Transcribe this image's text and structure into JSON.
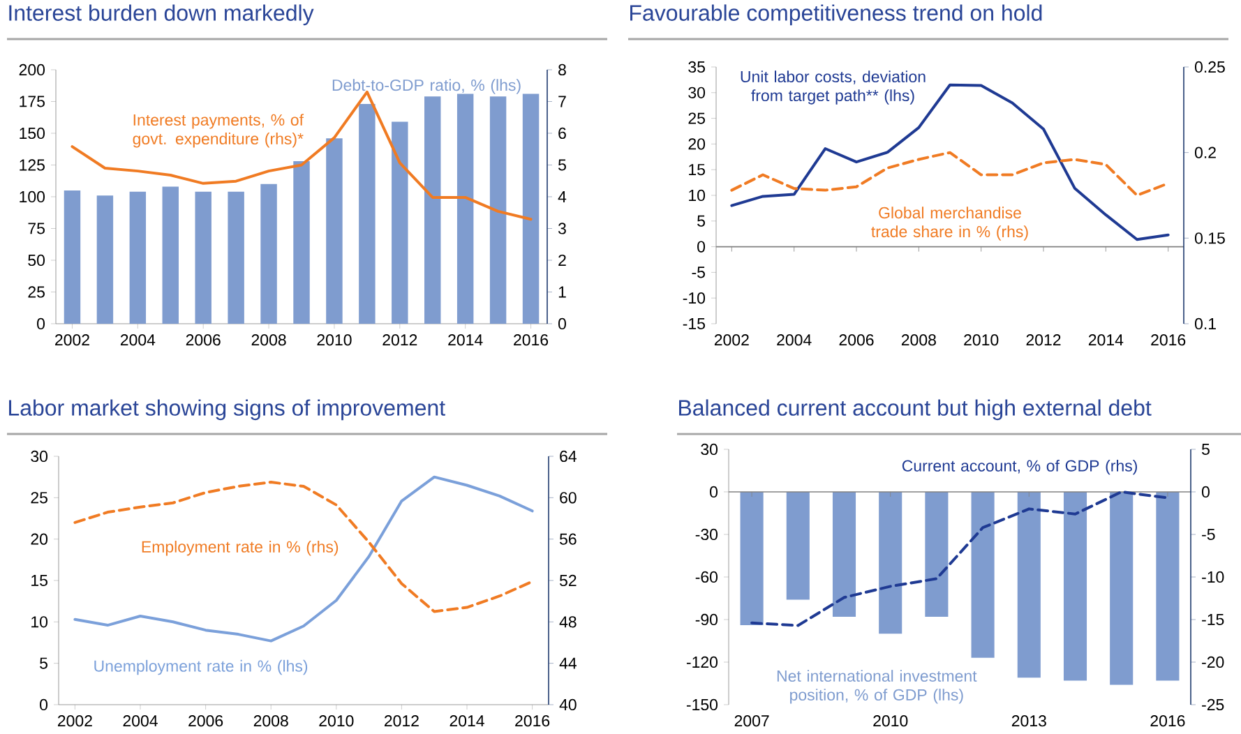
{
  "chart_data": [
    {
      "type": "bar",
      "title": "Interest burden down markedly",
      "x": [
        2002,
        2003,
        2004,
        2005,
        2006,
        2007,
        2008,
        2009,
        2010,
        2011,
        2012,
        2013,
        2014,
        2015,
        2016
      ],
      "xlim": [
        2001.5,
        2016.5
      ],
      "xticks": [
        2002,
        2004,
        2006,
        2008,
        2010,
        2012,
        2014,
        2016
      ],
      "ylim": [
        0,
        200
      ],
      "yticks": [
        0,
        25,
        50,
        75,
        100,
        125,
        150,
        175,
        200
      ],
      "y2lim": [
        0,
        8
      ],
      "y2ticks": [
        0,
        1,
        2,
        3,
        4,
        5,
        6,
        7,
        8
      ],
      "series": [
        {
          "name": "Debt-to-GDP ratio, % (lhs)",
          "color": "#7f9ccf",
          "values": [
            105,
            101,
            104,
            108,
            104,
            104,
            110,
            128,
            146,
            173,
            159,
            179,
            181,
            179,
            181
          ]
        },
        {
          "name": "Interest payments, % of govt. expenditure (rhs)*",
          "type": "line",
          "axis": "y2",
          "color": "#f07b23",
          "values": [
            5.58,
            4.9,
            4.81,
            4.68,
            4.42,
            4.49,
            4.81,
            5.0,
            5.86,
            7.3,
            5.07,
            3.98,
            3.98,
            3.54,
            3.29
          ]
        }
      ]
    },
    {
      "type": "line",
      "title": "Favourable competitiveness trend on hold",
      "x": [
        2002,
        2003,
        2004,
        2005,
        2006,
        2007,
        2008,
        2009,
        2010,
        2011,
        2012,
        2013,
        2014,
        2015,
        2016
      ],
      "xlim": [
        2001.5,
        2016.5
      ],
      "xticks": [
        2002,
        2004,
        2006,
        2008,
        2010,
        2012,
        2014,
        2016
      ],
      "ylim": [
        -15,
        35
      ],
      "yticks": [
        -15,
        -10,
        -5,
        0,
        5,
        10,
        15,
        20,
        25,
        30,
        35
      ],
      "y2lim": [
        0.1,
        0.25
      ],
      "y2ticks": [
        0.1,
        0.15,
        0.2,
        0.25
      ],
      "series": [
        {
          "name": "Unit labor costs, deviation from target path** (lhs)",
          "color": "#1f3a93",
          "values": [
            8.0,
            9.8,
            10.2,
            19.1,
            16.5,
            18.4,
            23.2,
            31.5,
            31.4,
            28.0,
            22.9,
            11.4,
            6.2,
            1.4,
            2.3
          ]
        },
        {
          "name": "Global merchandise trade share in % (rhs)",
          "axis": "y2",
          "color": "#f07b23",
          "line_style": "dashed",
          "values": [
            0.178,
            0.187,
            0.179,
            0.178,
            0.18,
            0.191,
            0.196,
            0.2,
            0.187,
            0.187,
            0.194,
            0.196,
            0.193,
            0.175,
            0.182
          ]
        }
      ]
    },
    {
      "type": "line",
      "title": "Labor market showing signs of improvement",
      "x": [
        2002,
        2003,
        2004,
        2005,
        2006,
        2007,
        2008,
        2009,
        2010,
        2011,
        2012,
        2013,
        2014,
        2015,
        2016
      ],
      "xlim": [
        2001.5,
        2016.5
      ],
      "xticks": [
        2002,
        2004,
        2006,
        2008,
        2010,
        2012,
        2014,
        2016
      ],
      "ylim": [
        0,
        30
      ],
      "yticks": [
        0,
        5,
        10,
        15,
        20,
        25,
        30
      ],
      "y2lim": [
        40,
        64
      ],
      "y2ticks": [
        40,
        44,
        48,
        52,
        56,
        60,
        64
      ],
      "series": [
        {
          "name": "Unemployment rate in % (lhs)",
          "color": "#7ba0da",
          "values": [
            10.3,
            9.6,
            10.7,
            10.0,
            9.0,
            8.5,
            7.7,
            9.5,
            12.6,
            17.9,
            24.6,
            27.5,
            26.5,
            25.2,
            23.4
          ]
        },
        {
          "name": "Employment rate in % (rhs)",
          "axis": "y2",
          "color": "#f07b23",
          "line_style": "dashed",
          "values": [
            57.6,
            58.6,
            59.1,
            59.5,
            60.5,
            61.1,
            61.5,
            61.1,
            59.3,
            55.7,
            51.7,
            49.0,
            49.4,
            50.5,
            51.9
          ]
        }
      ]
    },
    {
      "type": "bar",
      "title": "Balanced current account but high external debt",
      "x": [
        2007,
        2008,
        2009,
        2010,
        2011,
        2012,
        2013,
        2014,
        2015,
        2016
      ],
      "xlim": [
        2006.5,
        2016.5
      ],
      "xticks": [
        2007,
        2010,
        2013,
        2016
      ],
      "ylim": [
        -150,
        30
      ],
      "yticks": [
        -150,
        -120,
        -90,
        -60,
        -30,
        0,
        30
      ],
      "y2lim": [
        -25,
        5
      ],
      "y2ticks": [
        -25,
        -20,
        -15,
        -10,
        -5,
        0,
        5
      ],
      "series": [
        {
          "name": "Net international investment position, % of GDP (lhs)",
          "color": "#7f9ccf",
          "values": [
            -94,
            -76,
            -88,
            -100,
            -88,
            -117,
            -131,
            -133,
            -136,
            -133
          ]
        },
        {
          "name": "Current account, % of GDP (rhs)",
          "type": "line",
          "axis": "y2",
          "color": "#1f3a93",
          "line_style": "dashed",
          "values": [
            -15.4,
            -15.7,
            -12.4,
            -11.1,
            -10.2,
            -4.2,
            -2.0,
            -2.6,
            0.0,
            -0.7
          ]
        }
      ]
    }
  ]
}
